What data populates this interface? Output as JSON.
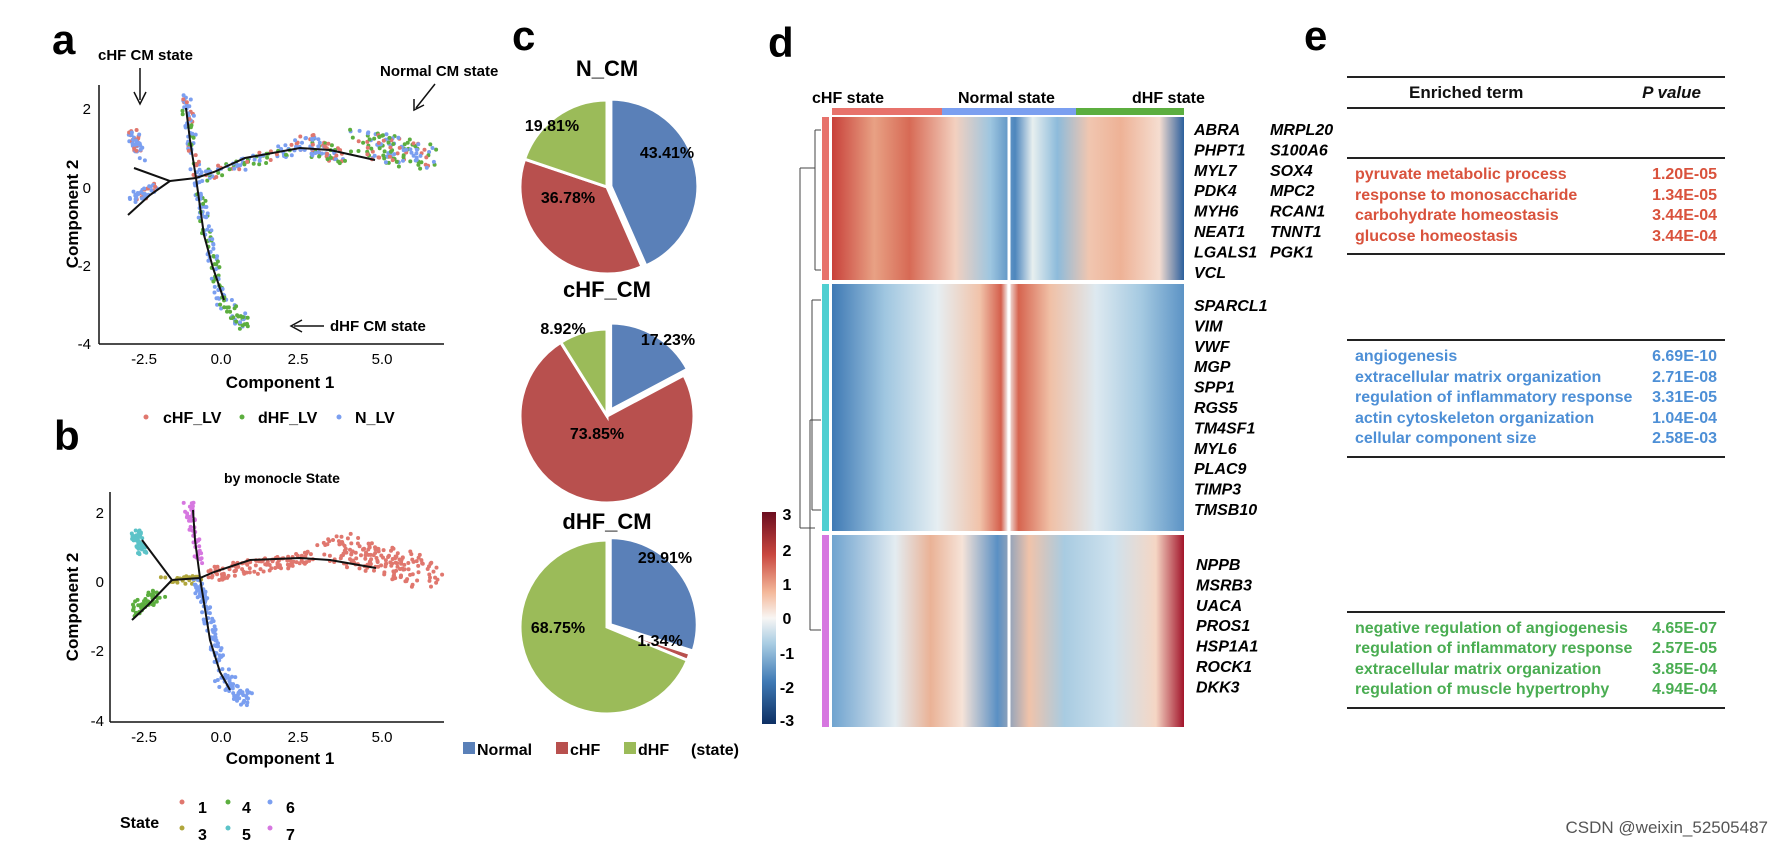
{
  "panels": {
    "a": "a",
    "b": "b",
    "c": "c",
    "d": "d",
    "e": "e"
  },
  "panel_a": {
    "annotations": {
      "chf": "cHF CM state",
      "normal": "Normal CM state",
      "dhf": "dHF CM state"
    },
    "xlabel": "Component 1",
    "ylabel": "Component 2",
    "xticks": [
      "-2.5",
      "0.0",
      "2.5",
      "5.0"
    ],
    "yticks": [
      "2",
      "0",
      "-2",
      "-4"
    ],
    "legend": [
      {
        "label": "cHF_LV",
        "color": "#e0776e"
      },
      {
        "label": "dHF_LV",
        "color": "#5cae3f"
      },
      {
        "label": "N_LV",
        "color": "#7b9ff0"
      }
    ]
  },
  "panel_b": {
    "title": "by monocle State",
    "xlabel": "Component 1",
    "ylabel": "Component 2",
    "xticks": [
      "-2.5",
      "0.0",
      "2.5",
      "5.0"
    ],
    "yticks": [
      "2",
      "0",
      "-2",
      "-4"
    ],
    "legend_title": "State",
    "legend": [
      {
        "label": "1",
        "color": "#e0776e"
      },
      {
        "label": "4",
        "color": "#5cae3f"
      },
      {
        "label": "6",
        "color": "#7b9ff0"
      },
      {
        "label": "3",
        "color": "#b0a63c"
      },
      {
        "label": "5",
        "color": "#5cc3c8"
      },
      {
        "label": "7",
        "color": "#d677e0"
      }
    ]
  },
  "chart_data": [
    {
      "type": "pie",
      "title": "N_CM",
      "categories": [
        "Normal",
        "cHF",
        "dHF"
      ],
      "values": [
        43.41,
        36.78,
        19.81
      ],
      "labels": [
        "43.41%",
        "36.78%",
        "19.81%"
      ]
    },
    {
      "type": "pie",
      "title": "cHF_CM",
      "categories": [
        "Normal",
        "cHF",
        "dHF"
      ],
      "values": [
        17.23,
        73.85,
        8.92
      ],
      "labels": [
        "17.23%",
        "73.85%",
        "8.92%"
      ]
    },
    {
      "type": "pie",
      "title": "dHF_CM",
      "categories": [
        "Normal",
        "cHF",
        "dHF"
      ],
      "values": [
        29.91,
        1.34,
        68.75
      ],
      "labels": [
        "29.91%",
        "1.34%",
        "68.75%"
      ]
    }
  ],
  "panel_c": {
    "legend": [
      {
        "label": "Normal",
        "color": "#5a80b8"
      },
      {
        "label": "cHF",
        "color": "#b8504e"
      },
      {
        "label": "dHF",
        "color": "#9bbb59"
      }
    ],
    "legend_suffix": "(state)"
  },
  "panel_d": {
    "state_labels": [
      "cHF state",
      "Normal state",
      "dHF state"
    ],
    "state_colors": [
      "#e7726b",
      "#7b9ff0",
      "#5cae3f"
    ],
    "colorbar_ticks": [
      "3",
      "2",
      "1",
      "0",
      "-1",
      "-2",
      "-3"
    ],
    "cluster_colors": [
      "#e7726b",
      "#4fcfd1",
      "#d677e0"
    ],
    "genes_group1_col1": [
      "ABRA",
      "PHPT1",
      "MYL7",
      "PDK4",
      "MYH6",
      "NEAT1",
      "LGALS1",
      "VCL"
    ],
    "genes_group1_col2": [
      "MRPL20",
      "S100A6",
      "SOX4",
      "MPC2",
      "RCAN1",
      "TNNT1",
      "PGK1"
    ],
    "genes_group2": [
      "SPARCL1",
      "VIM",
      "VWF",
      "MGP",
      "SPP1",
      "RGS5",
      "TM4SF1",
      "MYL6",
      "PLAC9",
      "TIMP3",
      "TMSB10"
    ],
    "genes_group3": [
      "NPPB",
      "MSRB3",
      "UACA",
      "PROS1",
      "HSP1A1",
      "ROCK1",
      "DKK3"
    ]
  },
  "panel_e": {
    "header_term": "Enriched term",
    "header_p": "P value",
    "groups": [
      {
        "color": "#d9523c",
        "rows": [
          {
            "term": "pyruvate metabolic process",
            "p": "1.20E-05"
          },
          {
            "term": "response to monosaccharide",
            "p": "1.34E-05"
          },
          {
            "term": "carbohydrate homeostasis",
            "p": "3.44E-04"
          },
          {
            "term": "glucose homeostasis",
            "p": "3.44E-04"
          }
        ]
      },
      {
        "color": "#4d8fd6",
        "rows": [
          {
            "term": "angiogenesis",
            "p": "6.69E-10"
          },
          {
            "term": "extracellular matrix organization",
            "p": "2.71E-08"
          },
          {
            "term": "regulation of inflammatory response",
            "p": "3.31E-05"
          },
          {
            "term": "actin cytoskeleton organization",
            "p": "1.04E-04"
          },
          {
            "term": "cellular component size",
            "p": "2.58E-03"
          }
        ]
      },
      {
        "color": "#4aad52",
        "rows": [
          {
            "term": "negative regulation of angiogenesis",
            "p": "4.65E-07"
          },
          {
            "term": "regulation of inflammatory response",
            "p": "2.57E-05"
          },
          {
            "term": "extracellular matrix organization",
            "p": "3.85E-04"
          },
          {
            "term": "regulation of muscle hypertrophy",
            "p": "4.94E-04"
          }
        ]
      }
    ]
  },
  "watermark": "CSDN @weixin_52505487"
}
